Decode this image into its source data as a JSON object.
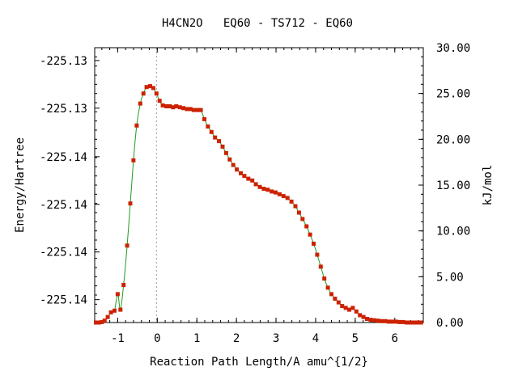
{
  "chart_data": {
    "type": "line",
    "title": "H4CN2O   EQ60 - TS712 - EQ60",
    "xlabel": "Reaction Path Length/A amu^{1/2}",
    "ylabel_left": "Energy/Hartree",
    "ylabel_right": "kJ/mol",
    "xlim": [
      -1.58,
      6.72
    ],
    "ylim_kj": [
      0,
      30
    ],
    "x_ticks": [
      -1,
      0,
      1,
      2,
      3,
      4,
      5,
      6
    ],
    "x_tick_labels": [
      "-1",
      "0",
      "1",
      "2",
      "3",
      "4",
      "5",
      "6"
    ],
    "left_ticks_kj": [
      2.5,
      7.7,
      12.9,
      18.1,
      23.4,
      28.6
    ],
    "left_tick_labels": [
      "-225.14",
      "-225.14",
      "-225.14",
      "-225.14",
      "-225.13",
      "-225.13"
    ],
    "right_ticks": [
      0,
      5,
      10,
      15,
      20,
      25,
      30
    ],
    "right_tick_labels": [
      "0.00",
      "5.00",
      "10.00",
      "15.00",
      "20.00",
      "25.00",
      "30.00"
    ],
    "ts_x": -0.02,
    "line_color": "#1f9c1f",
    "marker_color": "#cc2200",
    "ts_line_color": "#999999",
    "series": [
      {
        "x": [
          -1.55,
          -1.47,
          -1.4,
          -1.33,
          -1.25,
          -1.17,
          -1.08,
          -1.0,
          -0.93,
          -0.85,
          -0.76,
          -0.68,
          -0.6,
          -0.52,
          -0.43,
          -0.35,
          -0.27,
          -0.18,
          -0.1,
          -0.02,
          0.06,
          0.14,
          0.23,
          0.32,
          0.4,
          0.48,
          0.57,
          0.66,
          0.75,
          0.84,
          0.92,
          1.01,
          1.1,
          1.19,
          1.28,
          1.37,
          1.46,
          1.56,
          1.65,
          1.74,
          1.83,
          1.92,
          2.01,
          2.11,
          2.2,
          2.3,
          2.4,
          2.49,
          2.59,
          2.69,
          2.79,
          2.89,
          2.99,
          3.09,
          3.19,
          3.29,
          3.39,
          3.49,
          3.58,
          3.67,
          3.77,
          3.86,
          3.95,
          4.04,
          4.13,
          4.22,
          4.31,
          4.4,
          4.49,
          4.58,
          4.67,
          4.76,
          4.85,
          4.94,
          5.03,
          5.12,
          5.21,
          5.3,
          5.39,
          5.48,
          5.57,
          5.66,
          5.76,
          5.85,
          5.94,
          6.03,
          6.12,
          6.21,
          6.3,
          6.39,
          6.48,
          6.57,
          6.66
        ],
        "y": [
          0.0,
          0.0,
          0.05,
          0.2,
          0.6,
          1.1,
          1.3,
          3.1,
          1.4,
          4.1,
          8.4,
          13.0,
          17.7,
          21.5,
          23.9,
          25.0,
          25.7,
          25.8,
          25.6,
          25.0,
          24.2,
          23.7,
          23.6,
          23.6,
          23.5,
          23.6,
          23.5,
          23.4,
          23.3,
          23.3,
          23.2,
          23.2,
          23.2,
          22.2,
          21.4,
          20.8,
          20.2,
          19.8,
          19.2,
          18.5,
          17.8,
          17.2,
          16.7,
          16.3,
          16.0,
          15.7,
          15.5,
          15.1,
          14.8,
          14.6,
          14.5,
          14.3,
          14.2,
          14.0,
          13.8,
          13.6,
          13.2,
          12.7,
          12.0,
          11.3,
          10.5,
          9.6,
          8.6,
          7.4,
          6.1,
          4.8,
          3.8,
          3.1,
          2.6,
          2.2,
          1.8,
          1.6,
          1.4,
          1.6,
          1.2,
          0.8,
          0.6,
          0.4,
          0.3,
          0.25,
          0.2,
          0.15,
          0.15,
          0.1,
          0.1,
          0.1,
          0.05,
          0.05,
          0.0,
          0.0,
          0.0,
          0.0,
          0.0
        ]
      }
    ]
  }
}
